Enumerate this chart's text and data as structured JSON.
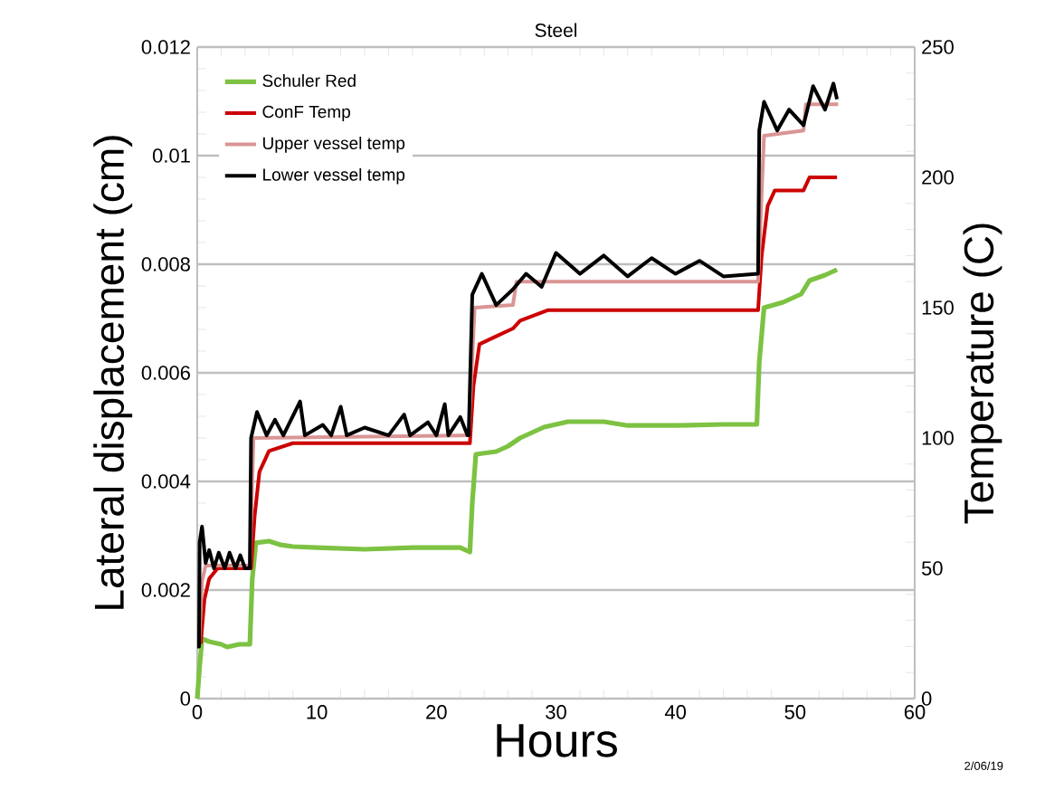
{
  "chart_data": {
    "type": "line",
    "title": "Steel",
    "xlabel": "Hours",
    "ylabel": "Lateral displacement (cm)",
    "y2label": "Temperature (C)",
    "annotations": [
      "2/06/19"
    ],
    "xlim": [
      0,
      60
    ],
    "xticks": [
      0,
      10,
      20,
      30,
      40,
      50,
      60
    ],
    "ylim": [
      0,
      0.012
    ],
    "yticks": [
      0,
      0.002,
      0.004,
      0.006,
      0.008,
      0.01,
      0.012
    ],
    "y2lim": [
      0,
      250
    ],
    "y2ticks": [
      0,
      50,
      100,
      150,
      200,
      250
    ],
    "grid": "y",
    "legend": "top left",
    "series": [
      {
        "name": "Schuler Red",
        "color": "#7dc242",
        "x": [
          0,
          0.2,
          0.4,
          1,
          2,
          2.5,
          3.5,
          4.4,
          4.6,
          4.9,
          6,
          7,
          8,
          10,
          14,
          18,
          22,
          22.8,
          23,
          23.3,
          25,
          26,
          27,
          29,
          31,
          34,
          36,
          40,
          44,
          46.8,
          47,
          47.4,
          49,
          50.5,
          51.2,
          52.5,
          53.5
        ],
        "values": [
          0,
          0.0006,
          0.0011,
          0.00105,
          0.001,
          0.00095,
          0.001,
          0.001,
          0.0022,
          0.00287,
          0.0029,
          0.00283,
          0.0028,
          0.00278,
          0.00275,
          0.00278,
          0.00278,
          0.0027,
          0.0036,
          0.0045,
          0.00455,
          0.00465,
          0.0048,
          0.005,
          0.0051,
          0.0051,
          0.00503,
          0.00503,
          0.00505,
          0.00505,
          0.0062,
          0.0072,
          0.0073,
          0.00745,
          0.0077,
          0.0078,
          0.0079
        ]
      },
      {
        "name": "ConF Temp",
        "color": "#cc0000",
        "axis": "y2",
        "x": [
          0,
          0.3,
          0.6,
          1,
          1.7,
          4.5,
          4.8,
          5.2,
          6,
          8,
          22.8,
          23.1,
          23.6,
          25,
          26.4,
          27,
          29.3,
          46.9,
          47.2,
          47.7,
          48.3,
          50.7,
          51.2,
          53.5
        ],
        "values": [
          21.5,
          21.5,
          38,
          46,
          50,
          50,
          70,
          87,
          95,
          98,
          98,
          120,
          136,
          139,
          142,
          145,
          149,
          149,
          170,
          189,
          195,
          195,
          200,
          200
        ]
      },
      {
        "name": "Upper vessel temp",
        "color": "#d99594",
        "axis": "y2",
        "x": [
          0,
          0.15,
          0.4,
          0.7,
          4.4,
          4.7,
          22.7,
          23.2,
          26.4,
          26.7,
          46.9,
          47.4,
          50.7,
          50.9,
          53.6
        ],
        "values": [
          20,
          20,
          45,
          51,
          51,
          100,
          101,
          150,
          151,
          160,
          160,
          216,
          218,
          228,
          228
        ]
      },
      {
        "name": "Lower vessel temp",
        "color": "#000000",
        "axis": "y2",
        "x": [
          0,
          0.15,
          0.2,
          0.4,
          0.7,
          1,
          1.4,
          1.8,
          2.3,
          2.7,
          3.2,
          3.6,
          4.0,
          4.4,
          4.5,
          5,
          5.8,
          6.5,
          7.2,
          8.6,
          9,
          10.5,
          11.2,
          12,
          12.5,
          14,
          16,
          17.3,
          17.8,
          19.3,
          20,
          20.7,
          21,
          22,
          22.6,
          22.7,
          23,
          23.8,
          25,
          26.4,
          27.5,
          28.8,
          30,
          32,
          34,
          36,
          38,
          40,
          42,
          44,
          46.9,
          47,
          47.4,
          48.5,
          49.5,
          50.7,
          51.5,
          52.5,
          53.2,
          53.5
        ],
        "values": [
          20,
          20,
          60,
          66,
          52,
          57,
          50,
          56,
          50,
          56,
          50,
          55,
          50,
          50,
          100,
          110,
          101,
          107,
          101,
          114,
          101,
          105,
          101,
          112,
          101,
          104,
          101,
          109,
          101,
          106,
          101,
          113,
          101,
          108,
          101,
          101,
          155,
          163,
          151,
          157,
          163,
          158,
          171,
          163,
          170,
          162,
          169,
          163,
          168,
          162,
          163,
          218,
          229,
          218,
          226,
          220,
          235,
          226,
          236,
          230
        ]
      }
    ]
  }
}
